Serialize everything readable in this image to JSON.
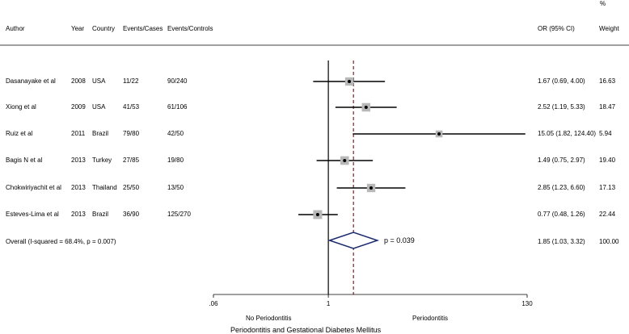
{
  "header": {
    "author": "Author",
    "year": "Year",
    "country": "Country",
    "events_cases": "Events/Cases",
    "events_controls": "Events/Controls",
    "or_ci": "OR (95% CI)",
    "weight_pct": "%",
    "weight": "Weight"
  },
  "chart_data": {
    "type": "forest",
    "x_scale": "log",
    "null_line": 1,
    "overall_line": 1.85,
    "xlim": [
      0.06,
      130
    ],
    "ticks": [
      {
        "value": 0.06,
        "label": ".06"
      },
      {
        "value": 1,
        "label": "1"
      },
      {
        "value": 130,
        "label": "130"
      }
    ],
    "left_label": "No Periodontitis",
    "right_label": "Periodontitis",
    "xlabel": "Periodontitis and Gestational Diabetes Mellitus",
    "studies": [
      {
        "author": "Dasanayake et al",
        "year": "2008",
        "country": "USA",
        "cases": "11/22",
        "controls": "90/240",
        "or": 1.67,
        "lo": 0.69,
        "hi": 4.0,
        "or_text": "1.67 (0.69, 4.00)",
        "weight": 16.63,
        "weight_text": "16.63"
      },
      {
        "author": "Xiong et al",
        "year": "2009",
        "country": "USA",
        "cases": "41/53",
        "controls": "61/106",
        "or": 2.52,
        "lo": 1.19,
        "hi": 5.33,
        "or_text": "2.52 (1.19, 5.33)",
        "weight": 18.47,
        "weight_text": "18.47"
      },
      {
        "author": "Ruiz et al",
        "year": "2011",
        "country": "Brazil",
        "cases": "79/80",
        "controls": "42/50",
        "or": 15.05,
        "lo": 1.82,
        "hi": 124.4,
        "or_text": "15.05 (1.82, 124.40)",
        "weight": 5.94,
        "weight_text": "5.94"
      },
      {
        "author": "Bagis N et al",
        "year": "2013",
        "country": "Turkey",
        "cases": "27/85",
        "controls": "19/80",
        "or": 1.49,
        "lo": 0.75,
        "hi": 2.97,
        "or_text": "1.49 (0.75, 2.97)",
        "weight": 19.4,
        "weight_text": "19.40"
      },
      {
        "author": "Chokwiriyachit et al",
        "year": "2013",
        "country": "Thailand",
        "cases": "25/50",
        "controls": "13/50",
        "or": 2.85,
        "lo": 1.23,
        "hi": 6.6,
        "or_text": "2.85 (1.23, 6.60)",
        "weight": 17.13,
        "weight_text": "17.13"
      },
      {
        "author": "Esteves-Lima et al",
        "year": "2013",
        "country": "Brazil",
        "cases": "36/90",
        "controls": "125/270",
        "or": 0.77,
        "lo": 0.48,
        "hi": 1.26,
        "or_text": "0.77 (0.48, 1.26)",
        "weight": 22.44,
        "weight_text": "22.44"
      }
    ],
    "overall": {
      "label": "Overall  (I-squared = 68.4%, p = 0.007)",
      "or": 1.85,
      "lo": 1.03,
      "hi": 3.32,
      "or_text": "1.85 (1.03, 3.32)",
      "weight_text": "100.00",
      "p_label": "p = 0.039"
    },
    "colors": {
      "diamond": "#1a2a6e",
      "overall_line": "#8b1a1a",
      "box": "#b8b8b8"
    }
  }
}
